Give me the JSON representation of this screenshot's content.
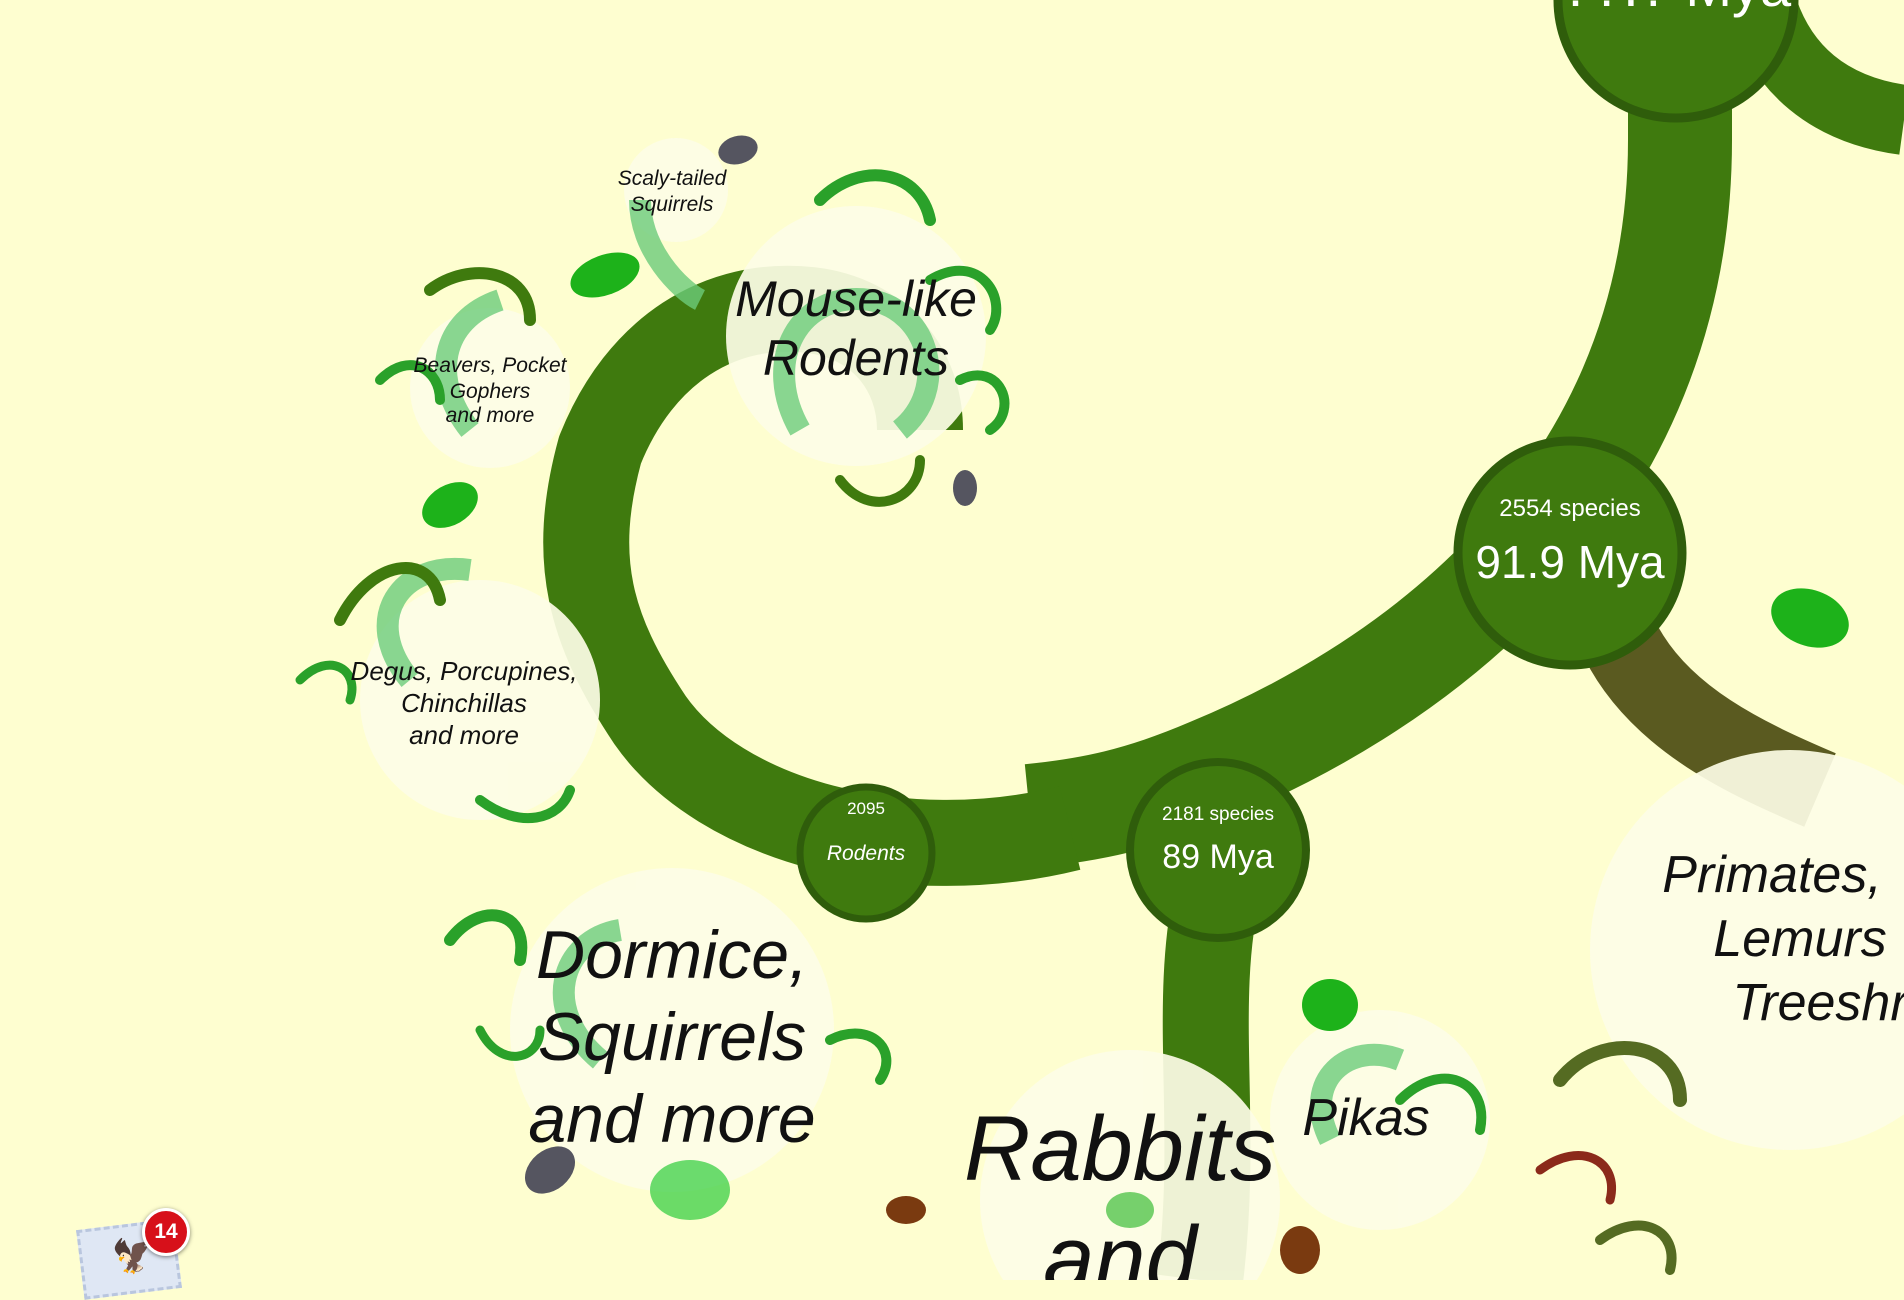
{
  "nodes": [
    {
      "species": "",
      "age": "??.? Mya",
      "id": "top"
    },
    {
      "species": "2554 species",
      "age": "91.9 Mya",
      "id": "n2554"
    },
    {
      "species": "2181 species",
      "age": "89 Mya",
      "id": "n2181"
    },
    {
      "species": "2095",
      "age": "Rodents",
      "id": "n2095"
    }
  ],
  "labels": {
    "scaly": [
      "Scaly-tailed",
      "Squirrels"
    ],
    "mouse": [
      "Mouse-like",
      "Rodents"
    ],
    "beavers": [
      "Beavers, Pocket",
      "Gophers",
      "and more"
    ],
    "degus": [
      "Degus, Porcupines,",
      "Chinchillas",
      "and more"
    ],
    "dormice": [
      "Dormice,",
      "Squirrels",
      "and more"
    ],
    "rabbits": [
      "Rabbits",
      "and"
    ],
    "pikas": [
      "Pikas"
    ],
    "primates": [
      "Primates,",
      "Lemurs",
      "Treeshr"
    ]
  },
  "dock": {
    "app": "Mail",
    "badge": "14"
  },
  "colors": {
    "background": "#fefed0",
    "trunk": "#3f7a0e",
    "leaf": "#1db21a",
    "bubble": "#fdfde6"
  }
}
